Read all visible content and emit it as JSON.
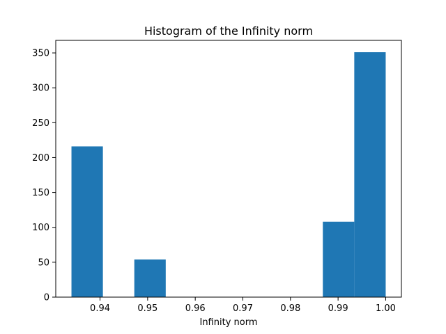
{
  "chart_data": {
    "type": "bar",
    "title": "Histogram of the Infinity norm",
    "xlabel": "Infinity norm",
    "ylabel": "",
    "xlim": [
      0.9307,
      1.0033
    ],
    "ylim": [
      0,
      368
    ],
    "grid": false,
    "bar_color": "#1f77b4",
    "bins": [
      {
        "x0": 0.934,
        "x1": 0.9406,
        "value": 216
      },
      {
        "x0": 0.9406,
        "x1": 0.9472,
        "value": 0
      },
      {
        "x0": 0.9472,
        "x1": 0.9538,
        "value": 54
      },
      {
        "x0": 0.9538,
        "x1": 0.9604,
        "value": 0
      },
      {
        "x0": 0.9604,
        "x1": 0.967,
        "value": 0
      },
      {
        "x0": 0.967,
        "x1": 0.9736,
        "value": 0
      },
      {
        "x0": 0.9736,
        "x1": 0.9802,
        "value": 0
      },
      {
        "x0": 0.9802,
        "x1": 0.9868,
        "value": 0
      },
      {
        "x0": 0.9868,
        "x1": 0.9934,
        "value": 108
      },
      {
        "x0": 0.9934,
        "x1": 1.0,
        "value": 351
      }
    ],
    "x_ticks": [
      {
        "value": 0.94,
        "label": "0.94"
      },
      {
        "value": 0.95,
        "label": "0.95"
      },
      {
        "value": 0.96,
        "label": "0.96"
      },
      {
        "value": 0.97,
        "label": "0.97"
      },
      {
        "value": 0.98,
        "label": "0.98"
      },
      {
        "value": 0.99,
        "label": "0.99"
      },
      {
        "value": 1.0,
        "label": "1.00"
      }
    ],
    "y_ticks": [
      {
        "value": 0,
        "label": "0"
      },
      {
        "value": 50,
        "label": "50"
      },
      {
        "value": 100,
        "label": "100"
      },
      {
        "value": 150,
        "label": "150"
      },
      {
        "value": 200,
        "label": "200"
      },
      {
        "value": 250,
        "label": "250"
      },
      {
        "value": 300,
        "label": "300"
      },
      {
        "value": 350,
        "label": "350"
      }
    ]
  }
}
